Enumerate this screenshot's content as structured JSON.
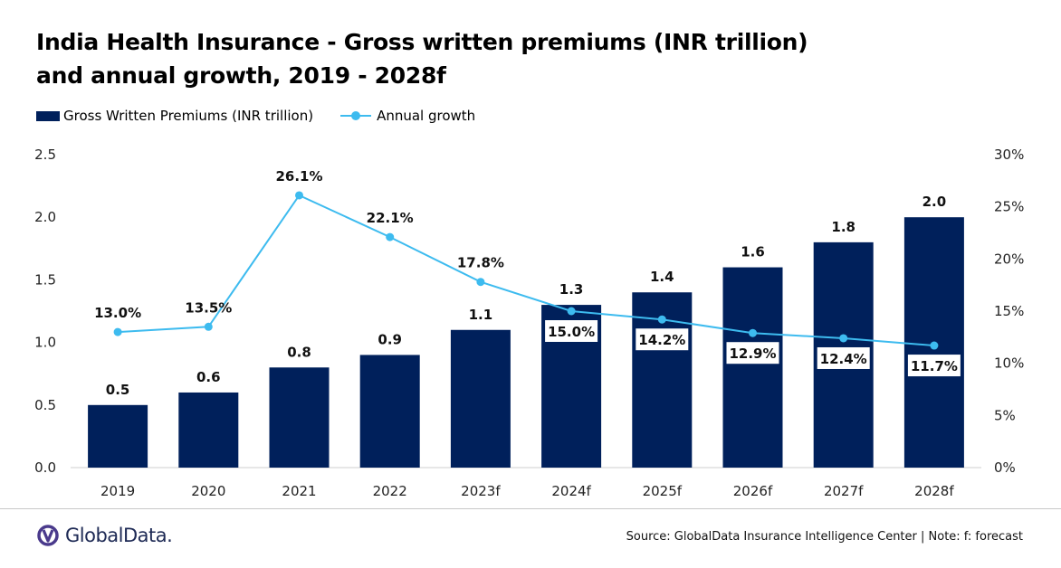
{
  "title_line1": "India Health Insurance - Gross written premiums (INR trillion)",
  "title_line2": "and annual growth, 2019 - 2028f",
  "legend": {
    "bar_label": "Gross Written Premiums (INR trillion)",
    "line_label": "Annual growth"
  },
  "source": "Source: GlobalData Insurance Intelligence Center | Note: f: forecast",
  "logo": {
    "text": "GlobalData.",
    "icon": "globaldata-logo-icon"
  },
  "colors": {
    "bar": "#00205b",
    "line": "#3dbbef",
    "logo": "#4a3a8c"
  },
  "chart_data": {
    "type": "bar",
    "categories": [
      "2019",
      "2020",
      "2021",
      "2022",
      "2023f",
      "2024f",
      "2025f",
      "2026f",
      "2027f",
      "2028f"
    ],
    "series": [
      {
        "name": "Gross Written Premiums (INR trillion)",
        "type": "bar",
        "axis": "left",
        "values": [
          0.5,
          0.6,
          0.8,
          0.9,
          1.1,
          1.3,
          1.4,
          1.6,
          1.8,
          2.0
        ],
        "labels": [
          "0.5",
          "0.6",
          "0.8",
          "0.9",
          "1.1",
          "1.3",
          "1.4",
          "1.6",
          "1.8",
          "2.0"
        ]
      },
      {
        "name": "Annual growth",
        "type": "line",
        "axis": "right",
        "values": [
          13.0,
          13.5,
          26.1,
          22.1,
          17.8,
          15.0,
          14.2,
          12.9,
          12.4,
          11.7
        ],
        "labels": [
          "13.0%",
          "13.5%",
          "26.1%",
          "22.1%",
          "17.8%",
          "15.0%",
          "14.2%",
          "12.9%",
          "12.4%",
          "11.7%"
        ]
      }
    ],
    "left_axis": {
      "ylim": [
        0,
        2.5
      ],
      "ticks": [
        "0.0",
        "0.5",
        "1.0",
        "1.5",
        "2.0",
        "2.5"
      ]
    },
    "right_axis": {
      "ylim": [
        0,
        30
      ],
      "ticks": [
        "0%",
        "5%",
        "10%",
        "15%",
        "20%",
        "25%",
        "30%"
      ]
    },
    "grid": false,
    "legend_position": "top-left"
  }
}
